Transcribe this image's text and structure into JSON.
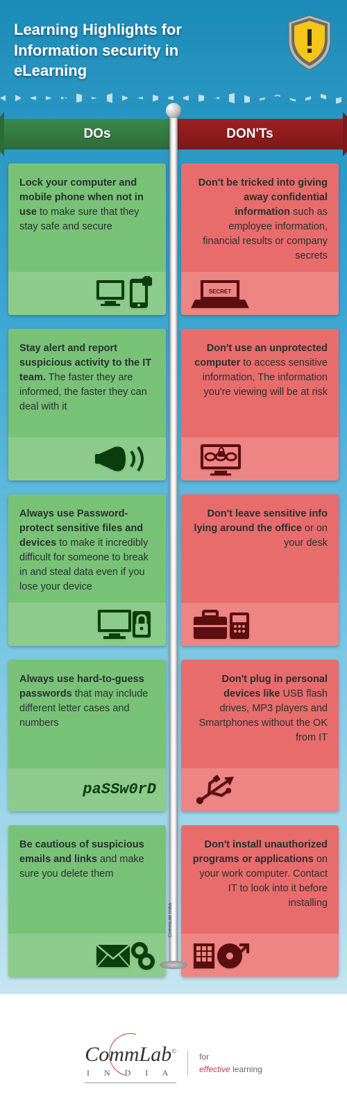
{
  "header": {
    "title_line1": "Learning Highlights for",
    "title_line2": "Information security in eLearning"
  },
  "columns": {
    "dos_label": "DOs",
    "donts_label": "DON'Ts"
  },
  "colors": {
    "do_bg": "#78c278",
    "do_strip": "#8dcb8d",
    "dont_bg": "#e86c6c",
    "dont_strip": "#ed8585",
    "do_arrow": "#2d6b39",
    "dont_arrow": "#7d1818",
    "icon_dark_green": "#0c3d0c",
    "icon_dark_red": "#5a0e0e"
  },
  "dos": [
    {
      "bold": "Lock your computer and mobile phone when not in use",
      "rest": " to make sure that they stay safe and secure",
      "icon": "devices-lock"
    },
    {
      "bold": "Stay alert and report suspicious activity to the IT team.",
      "rest": " The faster they are informed, the faster they can deal with it",
      "icon": "megaphone"
    },
    {
      "bold": "Always use Password-protect sensitive files and devices",
      "rest": " to make it incredibly difficult for someone to break in and steal data even if you lose your device",
      "icon": "computer-lock"
    },
    {
      "bold": "Always use hard-to-guess passwords",
      "rest": " that may include  different letter cases and numbers",
      "icon": "password-text",
      "icon_text": "paSSw0rD"
    },
    {
      "bold": "Be cautious of suspicious emails and links",
      "rest": " and make sure you delete them",
      "icon": "mail-link"
    }
  ],
  "donts": [
    {
      "bold": "Don't be tricked into giving away confidential information",
      "rest": " such as employee information, financial results or company secrets",
      "icon": "laptop-confidential"
    },
    {
      "bold": "Don't use an unprotected computer",
      "rest": " to access sensitive information, The information you're viewing will be at risk",
      "icon": "monitor-chain"
    },
    {
      "bold": "Don't leave sensitive info lying around the office",
      "rest": " or on your desk",
      "icon": "briefcase-phone"
    },
    {
      "bold": "Don't plug in personal devices like",
      "rest": " USB flash drives, MP3 players and Smartphones without the OK from IT",
      "icon": "usb"
    },
    {
      "bold": "Don't install unauthorized programs or applications",
      "rest": " on your work computer. Contact IT to look into it before installing",
      "icon": "install-cd"
    }
  ],
  "pole_label": "CommLab India",
  "footer": {
    "brand": "CommLab",
    "brand_sub": "I N D I A",
    "tag_line1": "for",
    "tag_eff": "effective",
    "tag_rest": " learning"
  }
}
